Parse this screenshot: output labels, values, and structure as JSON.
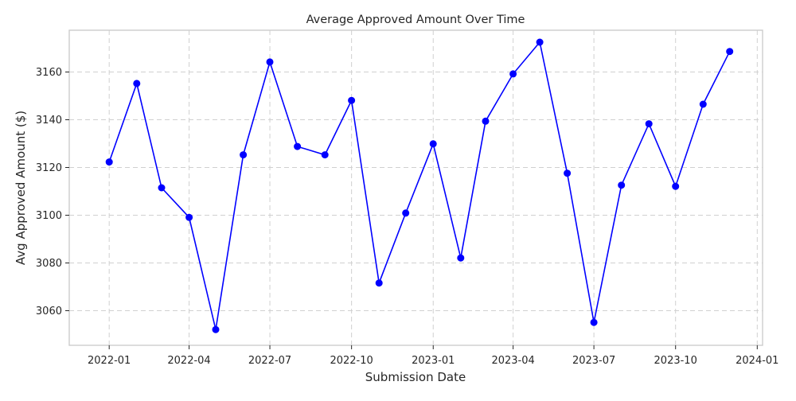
{
  "chart_data": {
    "type": "line",
    "title": "Average Approved Amount Over Time",
    "xlabel": "Submission Date",
    "ylabel": "Avg Approved Amount ($)",
    "x_ticks": [
      "2022-01",
      "2022-04",
      "2022-07",
      "2022-10",
      "2023-01",
      "2023-04",
      "2023-07",
      "2023-10",
      "2024-01"
    ],
    "y_ticks": [
      "3060",
      "3080",
      "3100",
      "3120",
      "3140",
      "3160"
    ],
    "xlim": [
      "2021-11-17",
      "2024-01-07"
    ],
    "ylim": [
      3045.5,
      3177.5
    ],
    "grid": true,
    "series": [
      {
        "color": "#0000ff",
        "marker": "circle",
        "x": [
          "2022-01-01",
          "2022-02-01",
          "2022-03-01",
          "2022-04-01",
          "2022-05-01",
          "2022-06-01",
          "2022-07-01",
          "2022-08-01",
          "2022-09-01",
          "2022-10-01",
          "2022-11-01",
          "2022-12-01",
          "2023-01-01",
          "2023-02-01",
          "2023-03-01",
          "2023-04-01",
          "2023-05-01",
          "2023-06-01",
          "2023-07-01",
          "2023-08-01",
          "2023-09-01",
          "2023-10-01",
          "2023-11-01",
          "2023-12-01"
        ],
        "values": [
          3122.3,
          3155.2,
          3111.5,
          3099.1,
          3052.1,
          3125.3,
          3164.2,
          3128.8,
          3125.3,
          3148.1,
          3071.6,
          3100.9,
          3129.9,
          3082.1,
          3139.4,
          3159.2,
          3172.5,
          3117.6,
          3055.1,
          3112.6,
          3138.3,
          3112.1,
          3146.5,
          3168.6
        ]
      }
    ]
  }
}
